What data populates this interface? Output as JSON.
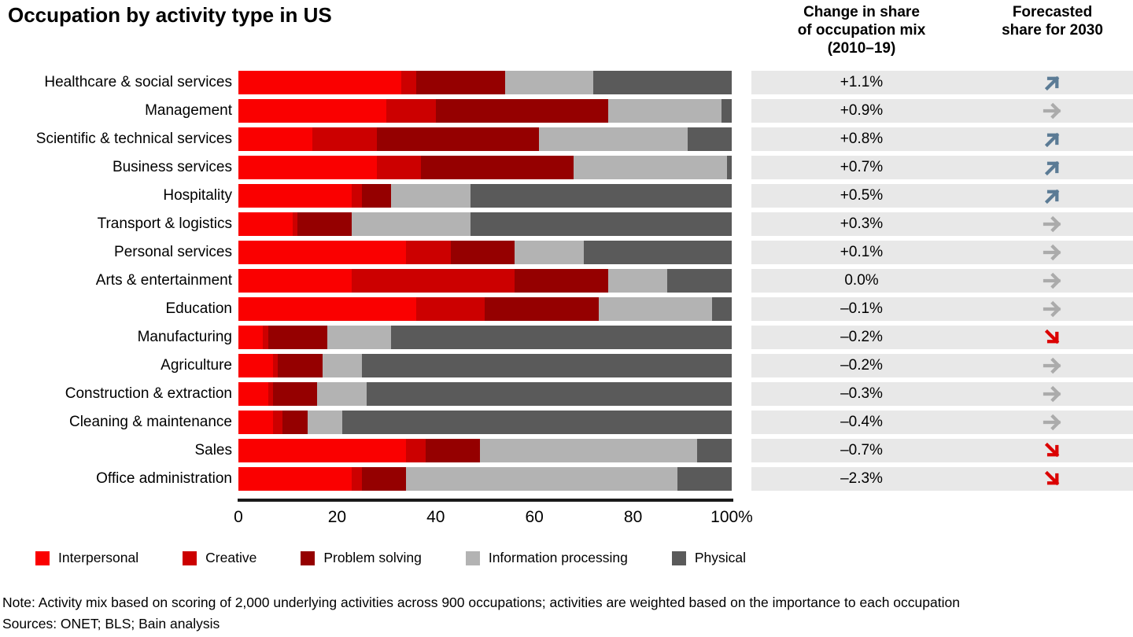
{
  "title": "Occupation by activity type in US",
  "columns": {
    "change_header_lines": [
      "Change in share",
      "of occupation mix",
      "(2010–19)"
    ],
    "forecast_header_lines": [
      "Forecasted",
      "share for 2030"
    ]
  },
  "colors": {
    "series": [
      "#FA0000",
      "#CC0000",
      "#950000",
      "#B3B3B3",
      "#5A5A5A"
    ],
    "row_band": "#E8E8E8",
    "arrow_up": "#5B7B95",
    "arrow_flat": "#ABABAB",
    "arrow_down": "#DB0000",
    "axis_line": "#1A1A1A"
  },
  "chart_data": {
    "type": "bar",
    "stacked": true,
    "orientation": "horizontal",
    "title": "Occupation by activity type in US",
    "xlabel": "",
    "ylabel": "",
    "x_axis": {
      "range": [
        0,
        100
      ],
      "tick_labels": [
        "0",
        "20",
        "40",
        "60",
        "80",
        "100%"
      ],
      "grid": false
    },
    "legend_position": "bottom",
    "categories": [
      "Healthcare & social services",
      "Management",
      "Scientific & technical services",
      "Business services",
      "Hospitality",
      "Transport & logistics",
      "Personal services",
      "Arts & entertainment",
      "Education",
      "Manufacturing",
      "Agriculture",
      "Construction & extraction",
      "Cleaning & maintenance",
      "Sales",
      "Office administration"
    ],
    "series": [
      {
        "name": "Interpersonal",
        "values": [
          33,
          30,
          15,
          28,
          23,
          11,
          34,
          23,
          36,
          5,
          7,
          6,
          7,
          34,
          23
        ]
      },
      {
        "name": "Creative",
        "values": [
          3,
          10,
          13,
          9,
          2,
          1,
          9,
          33,
          14,
          1,
          1,
          1,
          2,
          4,
          2
        ]
      },
      {
        "name": "Problem solving",
        "values": [
          18,
          35,
          33,
          31,
          6,
          11,
          13,
          19,
          23,
          12,
          9,
          9,
          5,
          11,
          9
        ]
      },
      {
        "name": "Information processing",
        "values": [
          18,
          23,
          30,
          31,
          16,
          24,
          14,
          12,
          23,
          13,
          8,
          10,
          7,
          44,
          55
        ]
      },
      {
        "name": "Physical",
        "values": [
          28,
          2,
          9,
          1,
          53,
          53,
          30,
          13,
          4,
          69,
          75,
          74,
          79,
          7,
          11
        ]
      }
    ],
    "change_in_share": [
      "+1.1%",
      "+0.9%",
      "+0.8%",
      "+0.7%",
      "+0.5%",
      "+0.3%",
      "+0.1%",
      "0.0%",
      "–0.1%",
      "–0.2%",
      "–0.2%",
      "–0.3%",
      "–0.4%",
      "–0.7%",
      "–2.3%"
    ],
    "forecast_2030": [
      "up",
      "flat",
      "up",
      "up",
      "up",
      "flat",
      "flat",
      "flat",
      "flat",
      "down",
      "flat",
      "flat",
      "flat",
      "down",
      "down"
    ]
  },
  "legend": {
    "items": [
      {
        "label": "Interpersonal"
      },
      {
        "label": "Creative"
      },
      {
        "label": "Problem solving"
      },
      {
        "label": "Information processing"
      },
      {
        "label": "Physical"
      }
    ]
  },
  "notes": {
    "note": "Note: Activity mix based on scoring of 2,000 underlying activities across 900 occupations; activities are weighted based on the importance to each occupation",
    "sources": "Sources: ONET; BLS; Bain analysis"
  }
}
